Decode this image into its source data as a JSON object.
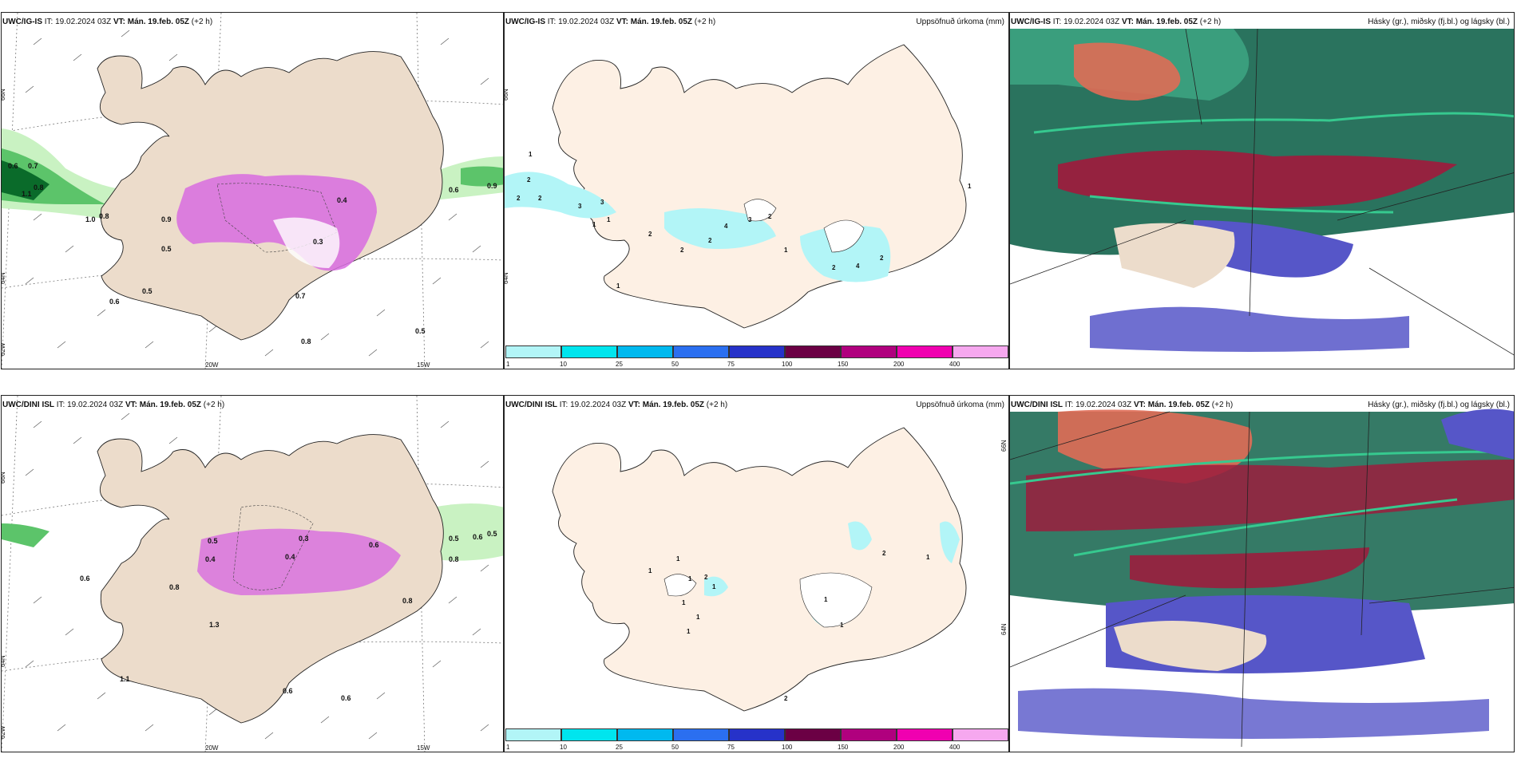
{
  "rows": [
    {
      "model": "UWC/IG-IS",
      "it_label": "IT:",
      "it_value": "19.02.2024 03Z",
      "vt_label": "VT:",
      "vt_value": "Mán. 19.feb. 05Z",
      "lead": "(+2 h)",
      "precip_title": "Uppsöfnuð úrkoma (mm)",
      "cloud_title": "Hásky (gr.), miðsky (fj.bl.) og lágsky (bl.)",
      "lat_labels": [
        "66N",
        "64N",
        "62W"
      ],
      "lon_labels": [
        "20W",
        "15W"
      ],
      "precip_rate_labels": [
        "0.6",
        "0.7",
        "0.8",
        "1.1",
        "1.0",
        "0.8",
        "0.9",
        "0.5",
        "0.6",
        "0.9",
        "0.4",
        "0.3",
        "0.5",
        "0.7",
        "0.6",
        "0.8",
        "0.5"
      ],
      "accum_labels": [
        "1",
        "2",
        "2",
        "2",
        "3",
        "3",
        "1",
        "1",
        "2",
        "2",
        "2",
        "4",
        "3",
        "2",
        "1",
        "2",
        "4",
        "2",
        "1",
        "1"
      ]
    },
    {
      "model": "UWC/DINI ISL",
      "it_label": "IT:",
      "it_value": "19.02.2024 03Z",
      "vt_label": "VT:",
      "vt_value": "Mán. 19.feb. 05Z",
      "lead": "(+2 h)",
      "precip_title": "Uppsöfnuð úrkoma (mm)",
      "cloud_title": "Hásky (gr.), miðsky (fj.bl.) og lágsky (bl.)",
      "lat_labels": [
        "66N",
        "64N",
        "62W"
      ],
      "lon_labels": [
        "20W",
        "15W"
      ],
      "precip_rate_labels": [
        "0.6",
        "0.8",
        "0.4",
        "0.5",
        "0.3",
        "0.4",
        "0.6",
        "0.5",
        "0.8",
        "0.6",
        "1.3",
        "0.8",
        "1.1",
        "0.6",
        "0.6",
        "0.5"
      ],
      "accum_labels": [
        "1",
        "1",
        "1",
        "1",
        "2",
        "1",
        "1",
        "1",
        "2",
        "1",
        "1",
        "2",
        "1"
      ]
    }
  ],
  "legend": {
    "labels": [
      "1",
      "10",
      "25",
      "50",
      "75",
      "100",
      "150",
      "200",
      "400"
    ],
    "colors": [
      "#b2f5f7",
      "#00e5ee",
      "#00b9ef",
      "#2b6ff0",
      "#2632c9",
      "#6b0044",
      "#b0007e",
      "#f000b0",
      "#f6a8ef"
    ]
  },
  "colors": {
    "land": "#ecdccb",
    "land_precip_panel": "#fdf0e4",
    "precip_light": "#c9f2c2",
    "precip_mid": "#5cc46a",
    "precip_heavy": "#0a6b2a",
    "snow_pink": "#d86ce0",
    "cloud_high": "#1f6b55",
    "cloud_mid": "#9b1d3d",
    "cloud_low": "#5656c8",
    "cloud_green": "#36c98f"
  }
}
